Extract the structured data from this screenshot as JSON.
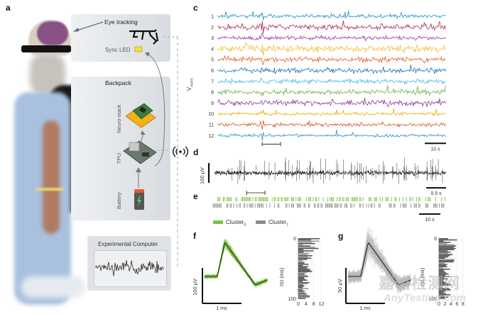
{
  "panels": {
    "a": {
      "label": "a",
      "eye_tracking": "Eye tracking",
      "sync_led": "Sync LED",
      "backpack": "Backpack",
      "neuro_stack": "Neuro-stack",
      "tpu": "TPU",
      "battery": "Battery",
      "experimental_computer": "Experimental Computer",
      "colors": {
        "battery_body": "#555555",
        "battery_cap": "#e8582a",
        "bolt": "#3ddc4a",
        "neuro_stack": "#f2b21c",
        "led": "#f5e03a"
      }
    },
    "c": {
      "label": "c"
    },
    "d": {
      "label": "d"
    },
    "e": {
      "label": "e"
    },
    "f": {
      "label": "f"
    },
    "g": {
      "label": "g"
    }
  },
  "watermark": {
    "cn": "嘉峪检测网",
    "en": "AnyTesting.com"
  },
  "chart_data": [
    {
      "id": "c",
      "type": "line",
      "title": "",
      "ylabel": "V_norm",
      "ylabel_main": "V",
      "ylabel_sub": "norm",
      "channels": [
        "1",
        "2",
        "3",
        "4",
        "5",
        "6",
        "7",
        "8",
        "9",
        "10",
        "11",
        "12"
      ],
      "series_colors": [
        "#1f8fd0",
        "#b2304f",
        "#8e3aa8",
        "#f0c040",
        "#e05a22",
        "#1770b8",
        "#4fb8e6",
        "#72b043",
        "#8a3a9c",
        "#f2a900",
        "#e0501c",
        "#1f8fd0"
      ],
      "scale_bar": "10 s",
      "highlight_window": "bracket under channel 12 marking zoomed interval"
    },
    {
      "id": "d",
      "type": "line",
      "series_color": "#111111",
      "scale_bar_y": "100 µV",
      "scale_bar_x": "0.5 s"
    },
    {
      "id": "e",
      "type": "scatter",
      "description": "spike raster",
      "series": [
        {
          "name": "Cluster0",
          "label_main": "Cluster",
          "label_sub": "0",
          "color": "#7cc242"
        },
        {
          "name": "Cluster1",
          "label_main": "Cluster",
          "label_sub": "1",
          "color": "#8c8c8c"
        }
      ],
      "scale_bar": "10 s"
    },
    {
      "id": "f",
      "type": "line",
      "description": "Cluster0 spike waveforms with mean",
      "waveform_color": "#7cc242",
      "mean_color": "#1a3a10",
      "scale_bar_y": "100 µV",
      "scale_bar_x": "1 ms",
      "isi_hist": {
        "type": "bar",
        "ylabel": "ISI (ms)",
        "ylim": [
          0,
          100
        ],
        "yticks": [
          "0",
          "100"
        ],
        "xticks": [
          "0",
          "4",
          "8",
          "12"
        ],
        "xlim": [
          0,
          14
        ]
      }
    },
    {
      "id": "g",
      "type": "line",
      "description": "Cluster1 spike waveforms with mean",
      "waveform_color": "#b8b8b8",
      "mean_color": "#222222",
      "scale_bar_y": "50 µV",
      "scale_bar_x": "1 ms",
      "isi_hist": {
        "type": "bar",
        "ylabel": "ISI (ms)",
        "ylim": [
          0,
          100
        ],
        "yticks": [
          "0",
          "100"
        ],
        "xticks": [
          "0",
          "2",
          "4",
          "6",
          "8"
        ],
        "xlim": [
          0,
          9
        ]
      }
    }
  ]
}
